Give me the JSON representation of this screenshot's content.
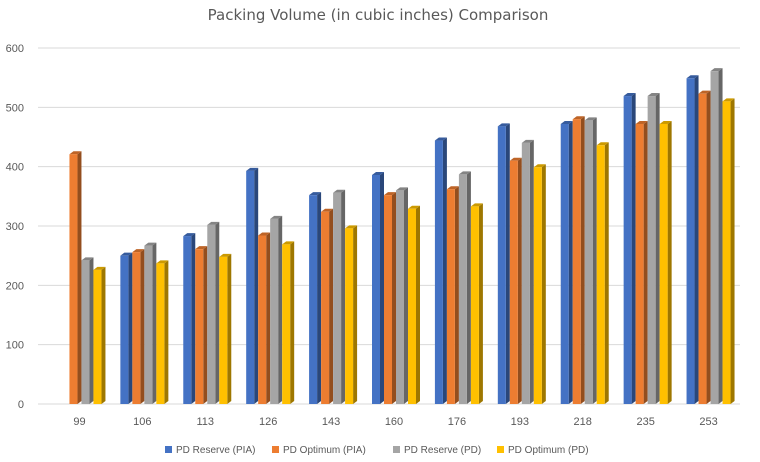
{
  "chart_data": {
    "type": "bar",
    "style": "3d-clustered-column",
    "title": "Packing Volume (in cubic inches) Comparison",
    "xlabel": "",
    "ylabel": "",
    "categories": [
      "99",
      "106",
      "113",
      "126",
      "143",
      "160",
      "176",
      "193",
      "218",
      "235",
      "253"
    ],
    "ylim": [
      0,
      600
    ],
    "yticks": [
      0,
      100,
      200,
      300,
      400,
      500,
      600
    ],
    "grid": true,
    "legend_position": "bottom",
    "series": [
      {
        "name": "PD Reserve (PIA)",
        "color": "#4472C4",
        "values": [
          null,
          250,
          283,
          393,
          352,
          386,
          444,
          468,
          472,
          519,
          549
        ]
      },
      {
        "name": "PD Optimum (PIA)",
        "color": "#ED7D31",
        "values": [
          421,
          256,
          261,
          284,
          324,
          352,
          362,
          410,
          480,
          472,
          523
        ]
      },
      {
        "name": "PD Reserve (PD)",
        "color": "#A5A5A5",
        "values": [
          242,
          267,
          302,
          312,
          356,
          360,
          387,
          440,
          478,
          519,
          561
        ]
      },
      {
        "name": "PD Optimum (PD)",
        "color": "#FFC000",
        "values": [
          226,
          237,
          248,
          269,
          296,
          329,
          333,
          399,
          436,
          472,
          510
        ]
      }
    ]
  }
}
